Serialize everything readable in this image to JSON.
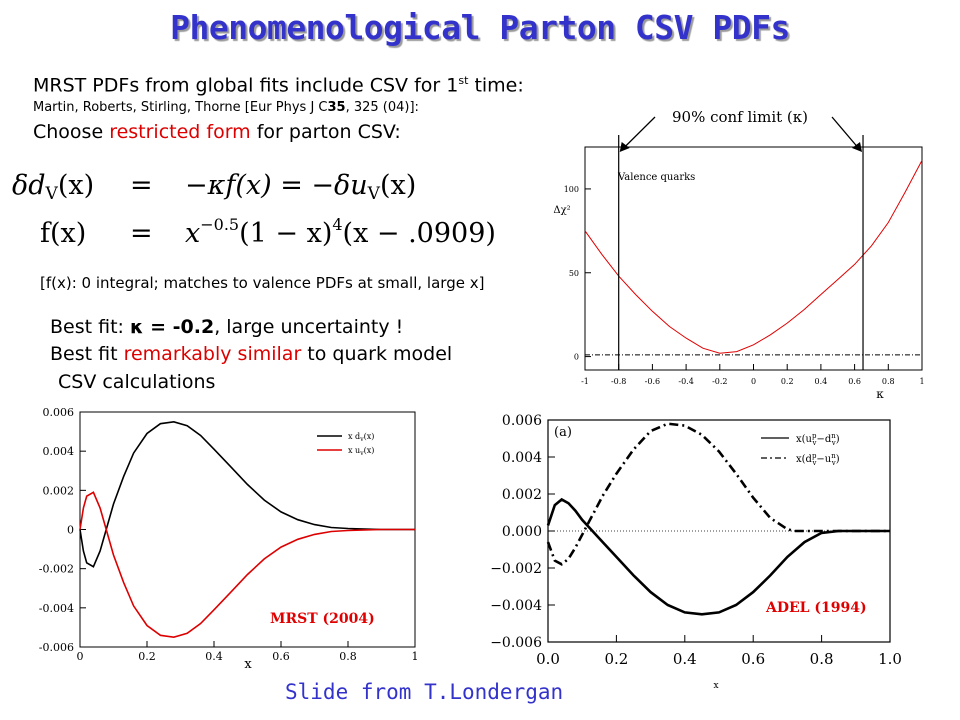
{
  "slide": {
    "title": "Phenomenological Parton CSV PDFs",
    "intro": {
      "line1_main": "MRST PDFs from global fits include CSV for 1",
      "line1_sup": "st",
      "line1_end": " time:",
      "ref_prefix": "Martin, Roberts, Stirling, Thorne [Eur Phys J C",
      "ref_volume": "35",
      "ref_suffix": ", 325 (04)]:",
      "line3_pre": "Choose ",
      "line3_red": "restricted form",
      "line3_post": " for parton CSV:"
    },
    "equation": {
      "lhs1": "δd",
      "lhs1_sub": "V",
      "lhs1_arg": "(x)",
      "eq": "=",
      "rhs1_a": "−κf(x) = −δu",
      "rhs1_sub": "V",
      "rhs1_arg": "(x)",
      "lhs2": "f(x)",
      "rhs2_a": "x",
      "rhs2_exp1": "−0.5",
      "rhs2_b": "(1 − x)",
      "rhs2_exp2": "4",
      "rhs2_c": "(x − .0909)"
    },
    "note": "[f(x): 0 integral; matches to valence PDFs at small, large x]",
    "bestfit": {
      "l1_pre": "Best fit: ",
      "l1_bold": "κ = -0.2",
      "l1_post": ", large uncertainty !",
      "l2_pre": "Best fit ",
      "l2_red": "remarkably similar",
      "l2_post": " to quark model",
      "l3": "CSV calculations"
    },
    "credit": "Slide from T.Londergan",
    "colors": {
      "title": "#3333cc",
      "red": "#dd0000",
      "credit": "#3333cc"
    }
  },
  "chart_data": [
    {
      "type": "line",
      "title": "",
      "panel_label": "Valence quarks",
      "ylabel": "Δχ²",
      "xlabel": "κ",
      "xlim": [
        -1,
        1
      ],
      "ylim": [
        -8,
        125
      ],
      "xticks": [
        -1,
        -0.8,
        -0.6,
        -0.4,
        -0.2,
        0,
        0.2,
        0.4,
        0.6,
        0.8,
        1
      ],
      "xtick_labels": [
        "-1",
        "-0.8",
        "-0.6",
        "-0.4",
        "-0.2",
        "0",
        "0.2",
        "0.4",
        "0.6",
        "0.8",
        "1"
      ],
      "yticks": [
        0,
        50,
        100
      ],
      "ytick_labels": [
        "0",
        "50",
        "100"
      ],
      "annotation": "90% conf limit (κ)",
      "confidence_limits": [
        -0.8,
        0.65
      ],
      "series": [
        {
          "x": [
            -1,
            -0.9,
            -0.8,
            -0.7,
            -0.6,
            -0.5,
            -0.4,
            -0.3,
            -0.2,
            -0.1,
            0,
            0.1,
            0.2,
            0.3,
            0.4,
            0.5,
            0.6,
            0.7,
            0.8,
            0.9,
            1.0
          ],
          "y": [
            75,
            61,
            48,
            37,
            27,
            18,
            11,
            5,
            2,
            3,
            7,
            13,
            20,
            28,
            37,
            46,
            55,
            66,
            80,
            98,
            117
          ]
        },
        {
          "x": [
            -1,
            1
          ],
          "y": [
            1,
            1
          ]
        }
      ]
    },
    {
      "type": "line",
      "title": "",
      "caption": "MRST (2004)",
      "xlabel": "x",
      "xlim": [
        0,
        1
      ],
      "ylim": [
        -0.006,
        0.006
      ],
      "xticks": [
        0,
        0.2,
        0.4,
        0.6,
        0.8,
        1
      ],
      "xtick_labels": [
        "0",
        "0.2",
        "0.4",
        "0.6",
        "0.8",
        "1"
      ],
      "yticks": [
        -0.006,
        -0.004,
        -0.002,
        0,
        0.002,
        0.004,
        0.006
      ],
      "ytick_labels": [
        "-0.006",
        "-0.004",
        "-0.002",
        "0",
        "0.002",
        "0.004",
        "0.006"
      ],
      "legend": "top-right",
      "legend_entries": [
        "x d",
        "x u"
      ],
      "legend_subscripts": [
        "v",
        "v"
      ],
      "legend_args": [
        "(x)",
        "(x)"
      ],
      "series": [
        {
          "color": "#000000",
          "x": [
            0,
            0.01,
            0.02,
            0.04,
            0.06,
            0.08,
            0.1,
            0.13,
            0.16,
            0.2,
            0.24,
            0.28,
            0.32,
            0.36,
            0.4,
            0.45,
            0.5,
            0.55,
            0.6,
            0.65,
            0.7,
            0.75,
            0.8,
            0.85,
            0.9,
            0.95,
            1.0
          ],
          "y": [
            0,
            -0.0011,
            -0.0017,
            -0.0019,
            -0.0011,
            0.0001,
            0.0013,
            0.0027,
            0.0039,
            0.0049,
            0.0054,
            0.0055,
            0.0053,
            0.0048,
            0.0041,
            0.0032,
            0.0023,
            0.0015,
            0.0009,
            0.0005,
            0.00025,
            0.0001,
            5e-05,
            2e-05,
            0,
            0,
            0
          ]
        },
        {
          "color": "#dd0000",
          "x": [
            0,
            0.01,
            0.02,
            0.04,
            0.06,
            0.08,
            0.1,
            0.13,
            0.16,
            0.2,
            0.24,
            0.28,
            0.32,
            0.36,
            0.4,
            0.45,
            0.5,
            0.55,
            0.6,
            0.65,
            0.7,
            0.75,
            0.8,
            0.85,
            0.9,
            0.95,
            1.0
          ],
          "y": [
            0,
            0.0011,
            0.0017,
            0.0019,
            0.0011,
            -0.0001,
            -0.0013,
            -0.0027,
            -0.0039,
            -0.0049,
            -0.0054,
            -0.0055,
            -0.0053,
            -0.0048,
            -0.0041,
            -0.0032,
            -0.0023,
            -0.0015,
            -0.0009,
            -0.0005,
            -0.00025,
            -0.0001,
            -5e-05,
            -2e-05,
            0,
            0,
            0
          ]
        }
      ]
    },
    {
      "type": "line",
      "title": "",
      "panel_label": "(a)",
      "caption": "ADEL (1994)",
      "xlabel": "x",
      "xlim": [
        0,
        1
      ],
      "ylim": [
        -0.006,
        0.006
      ],
      "xticks": [
        0,
        0.2,
        0.4,
        0.6,
        0.8,
        1.0
      ],
      "xtick_labels": [
        "0.0",
        "0.2",
        "0.4",
        "0.6",
        "0.8",
        "1.0"
      ],
      "yticks": [
        -0.006,
        -0.004,
        -0.002,
        0,
        0.002,
        0.004,
        0.006
      ],
      "ytick_labels": [
        "−0.006",
        "−0.004",
        "−0.002",
        "0.000",
        "0.002",
        "0.004",
        "0.006"
      ],
      "legend": "top-right",
      "legend_entries": [
        "x(u",
        "x(d"
      ],
      "legend_terms": [
        [
          "u",
          "p",
          "d",
          "n"
        ],
        [
          "d",
          "p",
          "u",
          "n"
        ]
      ],
      "legend_subscripts": [
        "v",
        "v"
      ],
      "series": [
        {
          "style": "solid",
          "x": [
            0,
            0.02,
            0.04,
            0.06,
            0.08,
            0.1,
            0.12,
            0.14,
            0.16,
            0.2,
            0.25,
            0.3,
            0.35,
            0.4,
            0.45,
            0.5,
            0.55,
            0.6,
            0.65,
            0.7,
            0.75,
            0.8,
            0.85,
            0.9,
            1.0
          ],
          "y": [
            0.0003,
            0.0014,
            0.0017,
            0.0015,
            0.0011,
            0.0006,
            0.0002,
            -0.0002,
            -0.0006,
            -0.0014,
            -0.0024,
            -0.0033,
            -0.004,
            -0.0044,
            -0.0045,
            -0.0044,
            -0.004,
            -0.0033,
            -0.0024,
            -0.0014,
            -0.0006,
            -0.0001,
            0,
            0,
            0
          ]
        },
        {
          "style": "dash-dot",
          "x": [
            0,
            0.02,
            0.04,
            0.06,
            0.08,
            0.1,
            0.12,
            0.14,
            0.16,
            0.2,
            0.25,
            0.3,
            0.35,
            0.4,
            0.45,
            0.5,
            0.55,
            0.6,
            0.65,
            0.7,
            0.72,
            0.75,
            0.8,
            0.9,
            1.0
          ],
          "y": [
            -0.0006,
            -0.0016,
            -0.0018,
            -0.0015,
            -0.0009,
            -0.0002,
            0.0005,
            0.0012,
            0.0019,
            0.0031,
            0.0044,
            0.0054,
            0.0058,
            0.0057,
            0.0052,
            0.0043,
            0.0031,
            0.0018,
            0.0007,
            0.0001,
            0,
            0,
            0,
            0,
            0
          ]
        }
      ]
    }
  ]
}
